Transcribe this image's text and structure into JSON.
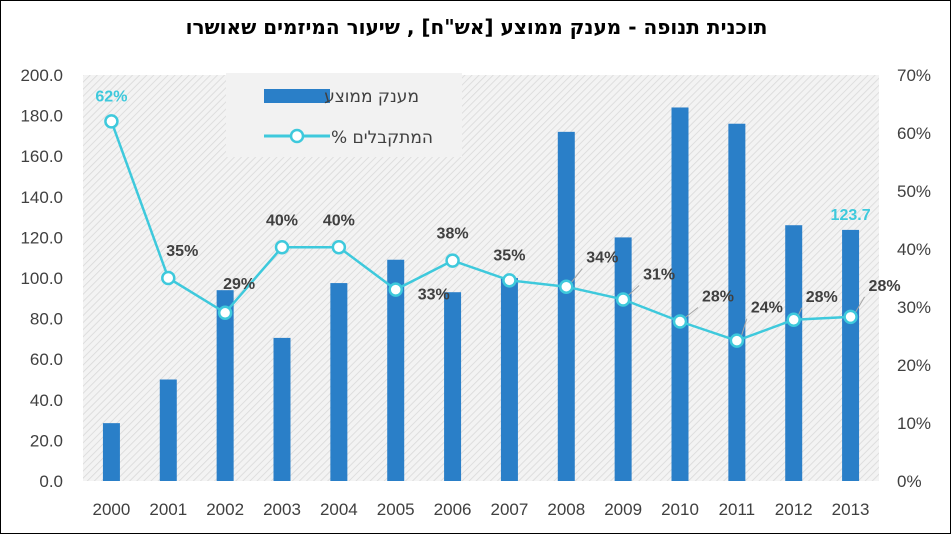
{
  "chart_data": {
    "type": "bar",
    "title": "תוכנית תנופה - מענק ממוצע [אש\"ח] , שיעור המיזמים שאושרו",
    "categories": [
      "2000",
      "2001",
      "2002",
      "2003",
      "2004",
      "2005",
      "2006",
      "2007",
      "2008",
      "2009",
      "2010",
      "2011",
      "2012",
      "2013"
    ],
    "series": [
      {
        "name": "מענק ממוצע",
        "type": "bar",
        "axis": "left",
        "values": [
          28.5,
          50,
          94,
          70.5,
          97.5,
          109,
          93,
          100,
          172,
          120,
          184,
          176,
          126,
          123.7
        ],
        "labels": [
          "",
          "",
          "",
          "",
          "",
          "",
          "",
          "",
          "",
          "",
          "",
          "",
          "",
          "123.7"
        ]
      },
      {
        "name": "% המתקבלים",
        "type": "line",
        "axis": "right",
        "values": [
          62,
          35,
          29,
          40.3,
          40.3,
          33,
          38,
          34.6,
          33.5,
          31.3,
          27.5,
          24.2,
          27.8,
          28.3
        ],
        "labels": [
          "62%",
          "35%",
          "29%",
          "40%",
          "40%",
          "33%",
          "38%",
          "35%",
          "34%",
          "31%",
          "28%",
          "24%",
          "28%",
          "28%"
        ]
      }
    ],
    "y_left": {
      "min": 0,
      "max": 200,
      "step": 20,
      "ticks": [
        "0.0",
        "20.0",
        "40.0",
        "60.0",
        "80.0",
        "100.0",
        "120.0",
        "140.0",
        "160.0",
        "180.0",
        "200.0"
      ]
    },
    "y_right": {
      "min": 0,
      "max": 70,
      "step": 10,
      "ticks": [
        "0%",
        "10%",
        "20%",
        "30%",
        "40%",
        "50%",
        "60%",
        "70%"
      ]
    },
    "legend_position": "top-left",
    "colors": {
      "bar": "#2a7fc8",
      "line": "#3ec9dc",
      "accent_label": "#3ec9dc",
      "grid_hatch": "#d9d9d9",
      "text": "#404040"
    }
  }
}
